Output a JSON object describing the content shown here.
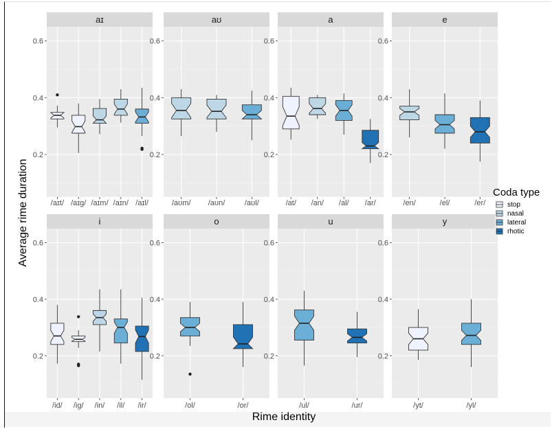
{
  "chart_data": {
    "type": "boxplot",
    "xlabel": "Rime identity",
    "ylabel": "Average rime duration",
    "ylim": [
      0.05,
      0.65
    ],
    "yticks": [
      0.2,
      0.4,
      0.6
    ],
    "ytick_labels": [
      "0.2",
      "0.4",
      "0.6"
    ],
    "grid": true,
    "notched": true,
    "facet_layout": "2x4",
    "legend": {
      "title": "Coda type",
      "placement": "right",
      "entries": [
        {
          "name": "stop",
          "color": "#eff3ff"
        },
        {
          "name": "nasal",
          "color": "#bdd7e7"
        },
        {
          "name": "lateral",
          "color": "#6baed6"
        },
        {
          "name": "rhotic",
          "color": "#2171b5"
        }
      ]
    },
    "facets": [
      {
        "title": "aɪ",
        "boxes": [
          {
            "label": "/aɪt/",
            "coda": "stop",
            "q1": 0.325,
            "median": 0.338,
            "q3": 0.348,
            "lower": 0.295,
            "upper": 0.372,
            "notch": [
              0.328,
              0.348
            ],
            "outliers": [
              0.41
            ]
          },
          {
            "label": "/aɪg/",
            "coda": "stop",
            "q1": 0.275,
            "median": 0.298,
            "q3": 0.338,
            "lower": 0.205,
            "upper": 0.38,
            "notch": [
              0.278,
              0.318
            ],
            "outliers": []
          },
          {
            "label": "/aɪm/",
            "coda": "nasal",
            "q1": 0.31,
            "median": 0.322,
            "q3": 0.362,
            "lower": 0.272,
            "upper": 0.395,
            "notch": [
              0.308,
              0.336
            ],
            "outliers": []
          },
          {
            "label": "/aɪn/",
            "coda": "nasal",
            "q1": 0.338,
            "median": 0.36,
            "q3": 0.395,
            "lower": 0.312,
            "upper": 0.43,
            "notch": [
              0.342,
              0.378
            ],
            "outliers": []
          },
          {
            "label": "/aɪl/",
            "coda": "lateral",
            "q1": 0.31,
            "median": 0.332,
            "q3": 0.36,
            "lower": 0.265,
            "upper": 0.435,
            "notch": [
              0.315,
              0.35
            ],
            "outliers": [
              0.222,
              0.218
            ]
          }
        ]
      },
      {
        "title": "aʊ",
        "boxes": [
          {
            "label": "/aʊm/",
            "coda": "nasal",
            "q1": 0.325,
            "median": 0.355,
            "q3": 0.4,
            "lower": 0.265,
            "upper": 0.43,
            "notch": [
              0.33,
              0.38
            ],
            "outliers": []
          },
          {
            "label": "/aʊn/",
            "coda": "nasal",
            "q1": 0.325,
            "median": 0.352,
            "q3": 0.395,
            "lower": 0.28,
            "upper": 0.41,
            "notch": [
              0.33,
              0.374
            ],
            "outliers": []
          },
          {
            "label": "/aʊl/",
            "coda": "lateral",
            "q1": 0.325,
            "median": 0.34,
            "q3": 0.375,
            "lower": 0.25,
            "upper": 0.425,
            "notch": [
              0.325,
              0.355
            ],
            "outliers": []
          }
        ]
      },
      {
        "title": "a",
        "boxes": [
          {
            "label": "/at/",
            "coda": "stop",
            "q1": 0.29,
            "median": 0.335,
            "q3": 0.405,
            "lower": 0.252,
            "upper": 0.435,
            "notch": [
              0.302,
              0.368
            ],
            "outliers": []
          },
          {
            "label": "/an/",
            "coda": "nasal",
            "q1": 0.34,
            "median": 0.362,
            "q3": 0.4,
            "lower": 0.325,
            "upper": 0.41,
            "notch": [
              0.345,
              0.379
            ],
            "outliers": []
          },
          {
            "label": "/al/",
            "coda": "lateral",
            "q1": 0.32,
            "median": 0.355,
            "q3": 0.39,
            "lower": 0.27,
            "upper": 0.415,
            "notch": [
              0.335,
              0.375
            ],
            "outliers": []
          },
          {
            "label": "/ar/",
            "coda": "rhotic",
            "q1": 0.22,
            "median": 0.23,
            "q3": 0.285,
            "lower": 0.17,
            "upper": 0.325,
            "notch": [
              0.218,
              0.242
            ],
            "outliers": []
          }
        ]
      },
      {
        "title": "e",
        "boxes": [
          {
            "label": "/en/",
            "coda": "nasal",
            "q1": 0.322,
            "median": 0.35,
            "q3": 0.37,
            "lower": 0.26,
            "upper": 0.43,
            "notch": [
              0.338,
              0.362
            ],
            "outliers": []
          },
          {
            "label": "/el/",
            "coda": "lateral",
            "q1": 0.275,
            "median": 0.305,
            "q3": 0.34,
            "lower": 0.22,
            "upper": 0.415,
            "notch": [
              0.29,
              0.32
            ],
            "outliers": []
          },
          {
            "label": "/er/",
            "coda": "rhotic",
            "q1": 0.24,
            "median": 0.28,
            "q3": 0.33,
            "lower": 0.175,
            "upper": 0.39,
            "notch": [
              0.26,
              0.3
            ],
            "outliers": []
          }
        ]
      },
      {
        "title": "i",
        "boxes": [
          {
            "label": "/id/",
            "coda": "stop",
            "q1": 0.24,
            "median": 0.27,
            "q3": 0.315,
            "lower": 0.172,
            "upper": 0.38,
            "notch": [
              0.25,
              0.29
            ],
            "outliers": []
          },
          {
            "label": "/ig/",
            "coda": "stop",
            "q1": 0.25,
            "median": 0.258,
            "q3": 0.27,
            "lower": 0.228,
            "upper": 0.29,
            "notch": [
              0.252,
              0.264
            ],
            "outliers": [
              0.338,
              0.17,
              0.165
            ]
          },
          {
            "label": "/in/",
            "coda": "nasal",
            "q1": 0.31,
            "median": 0.335,
            "q3": 0.36,
            "lower": 0.215,
            "upper": 0.435,
            "notch": [
              0.322,
              0.348
            ],
            "outliers": []
          },
          {
            "label": "/il/",
            "coda": "lateral",
            "q1": 0.245,
            "median": 0.3,
            "q3": 0.33,
            "lower": 0.172,
            "upper": 0.435,
            "notch": [
              0.28,
              0.32
            ],
            "outliers": []
          },
          {
            "label": "/ir/",
            "coda": "rhotic",
            "q1": 0.215,
            "median": 0.268,
            "q3": 0.305,
            "lower": 0.115,
            "upper": 0.405,
            "notch": [
              0.245,
              0.291
            ],
            "outliers": []
          }
        ]
      },
      {
        "title": "o",
        "boxes": [
          {
            "label": "/ol/",
            "coda": "lateral",
            "q1": 0.27,
            "median": 0.3,
            "q3": 0.335,
            "lower": 0.235,
            "upper": 0.39,
            "notch": [
              0.285,
              0.315
            ],
            "outliers": [
              0.135
            ]
          },
          {
            "label": "/or/",
            "coda": "rhotic",
            "q1": 0.225,
            "median": 0.242,
            "q3": 0.31,
            "lower": 0.16,
            "upper": 0.39,
            "notch": [
              0.218,
              0.266
            ],
            "outliers": []
          }
        ]
      },
      {
        "title": "u",
        "boxes": [
          {
            "label": "/ul/",
            "coda": "lateral",
            "q1": 0.255,
            "median": 0.315,
            "q3": 0.362,
            "lower": 0.165,
            "upper": 0.43,
            "notch": [
              0.29,
              0.34
            ],
            "outliers": []
          },
          {
            "label": "/ur/",
            "coda": "rhotic",
            "q1": 0.245,
            "median": 0.265,
            "q3": 0.295,
            "lower": 0.195,
            "upper": 0.355,
            "notch": [
              0.252,
              0.278
            ],
            "outliers": []
          }
        ]
      },
      {
        "title": "y",
        "boxes": [
          {
            "label": "/yt/",
            "coda": "stop",
            "q1": 0.22,
            "median": 0.26,
            "q3": 0.3,
            "lower": 0.185,
            "upper": 0.365,
            "notch": [
              0.24,
              0.28
            ],
            "outliers": []
          },
          {
            "label": "/yl/",
            "coda": "lateral",
            "q1": 0.24,
            "median": 0.272,
            "q3": 0.315,
            "lower": 0.16,
            "upper": 0.4,
            "notch": [
              0.254,
              0.29
            ],
            "outliers": []
          }
        ]
      }
    ]
  }
}
